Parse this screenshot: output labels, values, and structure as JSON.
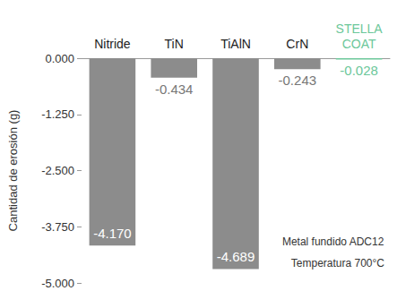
{
  "chart_data": {
    "type": "bar",
    "y_label": "Cantidad de erosión (g)",
    "categories": [
      "Nitride",
      "TiN",
      "TiAlN",
      "CrN",
      "STELLA COAT"
    ],
    "values": [
      -4.17,
      -0.434,
      -4.689,
      -0.243,
      -0.028
    ],
    "value_labels": [
      "-4.170",
      "-0.434",
      "-4.689",
      "-0.243",
      "-0.028"
    ],
    "colors": [
      "#8c8c8c",
      "#8c8c8c",
      "#8c8c8c",
      "#8c8c8c",
      "#6cc79a"
    ],
    "ylim": [
      -5,
      0
    ],
    "yticks": [
      {
        "value": 0,
        "label": "0.000"
      },
      {
        "value": -1.25,
        "label": "-1.250"
      },
      {
        "value": -2.5,
        "label": "-2.500"
      },
      {
        "value": -3.75,
        "label": "-3.750"
      },
      {
        "value": -5,
        "label": "-5.000"
      }
    ],
    "annotations": [
      "Metal fundido ADC12",
      "Temperatura 700°C"
    ],
    "data_labels": true,
    "grid": false
  }
}
